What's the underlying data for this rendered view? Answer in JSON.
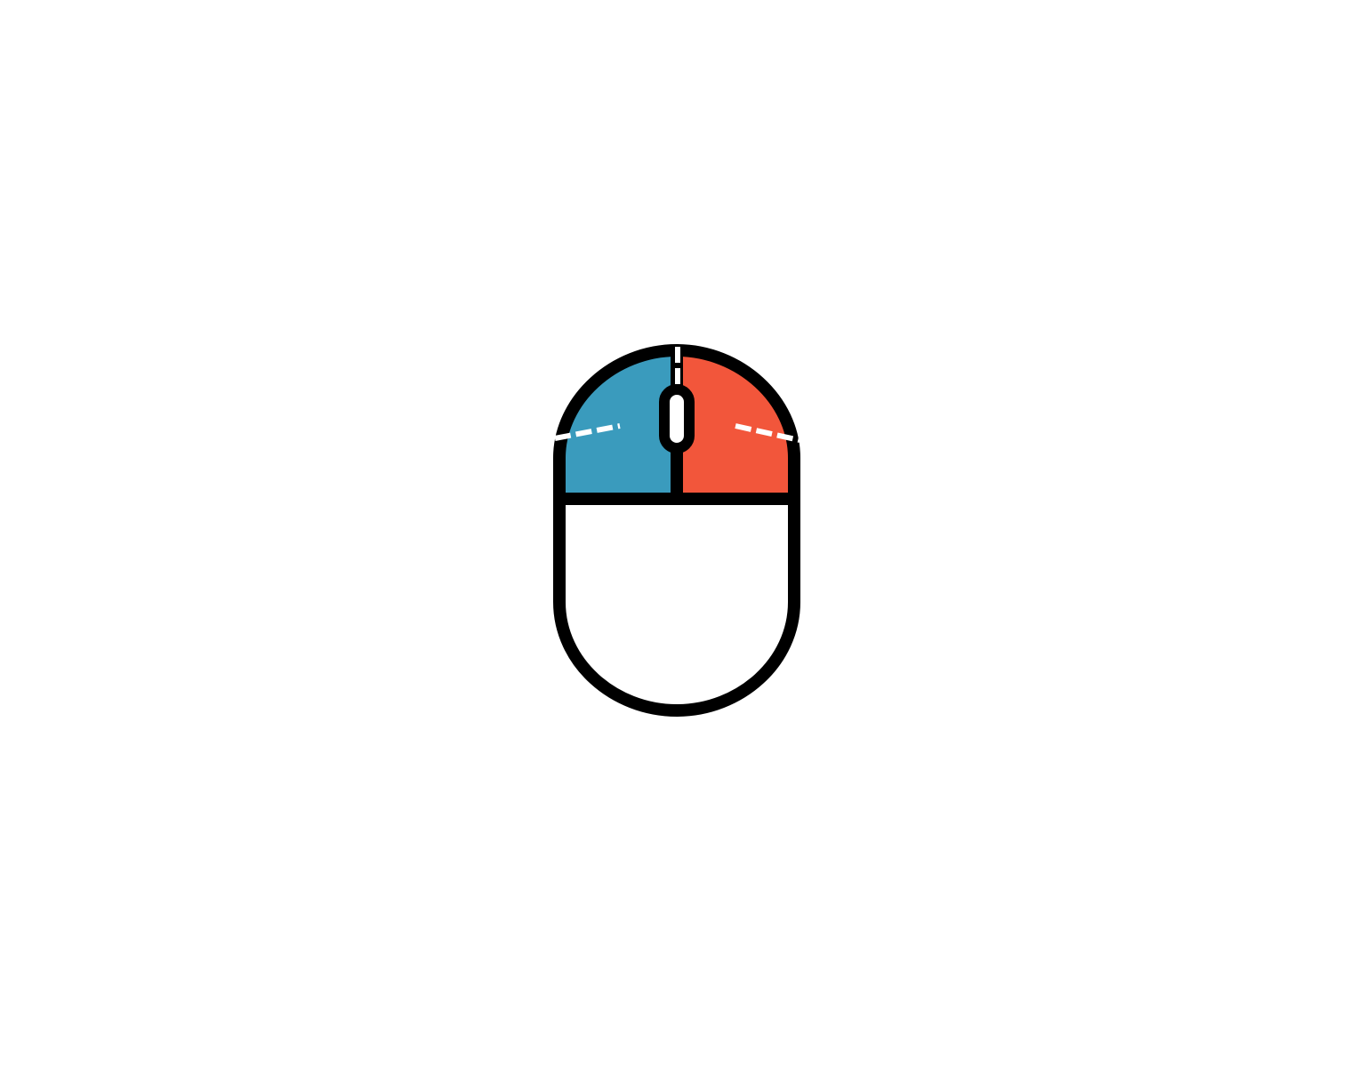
{
  "illustration": {
    "icon": "computer-mouse-icon",
    "colors": {
      "background": "#ffffff",
      "outline": "#000000",
      "left_button": "#3a9bbd",
      "right_button": "#f2563b",
      "body": "#ffffff",
      "scroll_wheel": "#ffffff",
      "accent_dashes": "#ffffff"
    },
    "parts": {
      "left_button": "left-button",
      "right_button": "right-button",
      "scroll_wheel": "scroll-wheel",
      "palm_rest": "palm-rest"
    }
  }
}
